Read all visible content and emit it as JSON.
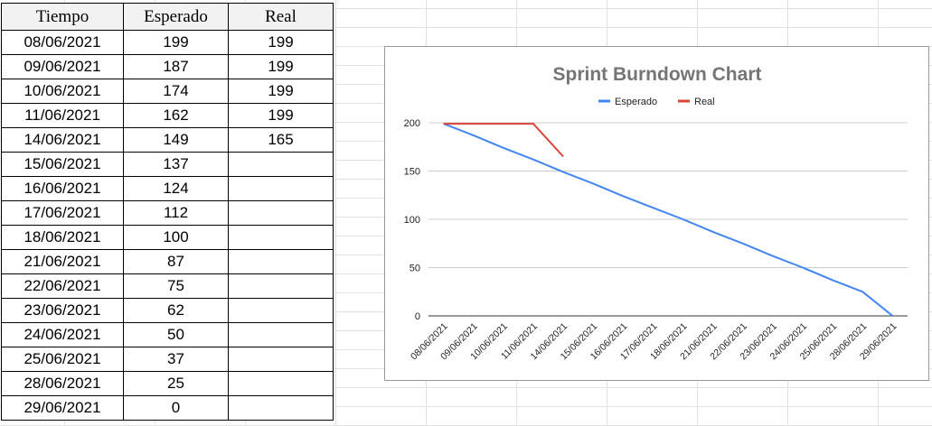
{
  "table": {
    "headers": [
      "Tiempo",
      "Esperado",
      "Real"
    ],
    "rows": [
      [
        "08/06/2021",
        "199",
        "199"
      ],
      [
        "09/06/2021",
        "187",
        "199"
      ],
      [
        "10/06/2021",
        "174",
        "199"
      ],
      [
        "11/06/2021",
        "162",
        "199"
      ],
      [
        "14/06/2021",
        "149",
        "165"
      ],
      [
        "15/06/2021",
        "137",
        ""
      ],
      [
        "16/06/2021",
        "124",
        ""
      ],
      [
        "17/06/2021",
        "112",
        ""
      ],
      [
        "18/06/2021",
        "100",
        ""
      ],
      [
        "21/06/2021",
        "87",
        ""
      ],
      [
        "22/06/2021",
        "75",
        ""
      ],
      [
        "23/06/2021",
        "62",
        ""
      ],
      [
        "24/06/2021",
        "50",
        ""
      ],
      [
        "25/06/2021",
        "37",
        ""
      ],
      [
        "28/06/2021",
        "25",
        ""
      ],
      [
        "29/06/2021",
        "0",
        ""
      ]
    ]
  },
  "chart_data": {
    "type": "line",
    "title": "Sprint Burndown Chart",
    "xlabel": "",
    "ylabel": "",
    "x": [
      "08/06/2021",
      "09/06/2021",
      "10/06/2021",
      "11/06/2021",
      "14/06/2021",
      "15/06/2021",
      "16/06/2021",
      "17/06/2021",
      "18/06/2021",
      "21/06/2021",
      "22/06/2021",
      "23/06/2021",
      "24/06/2021",
      "25/06/2021",
      "28/06/2021",
      "29/06/2021"
    ],
    "series": [
      {
        "name": "Esperado",
        "color": "#4285f4",
        "values": [
          199,
          187,
          174,
          162,
          149,
          137,
          124,
          112,
          100,
          87,
          75,
          62,
          50,
          37,
          25,
          0
        ]
      },
      {
        "name": "Real",
        "color": "#db4437",
        "values": [
          199,
          199,
          199,
          199,
          165,
          null,
          null,
          null,
          null,
          null,
          null,
          null,
          null,
          null,
          null,
          null
        ]
      }
    ],
    "ylim": [
      0,
      200
    ],
    "yticks": [
      0,
      50,
      100,
      150,
      200
    ],
    "grid": true,
    "legend": "top"
  }
}
